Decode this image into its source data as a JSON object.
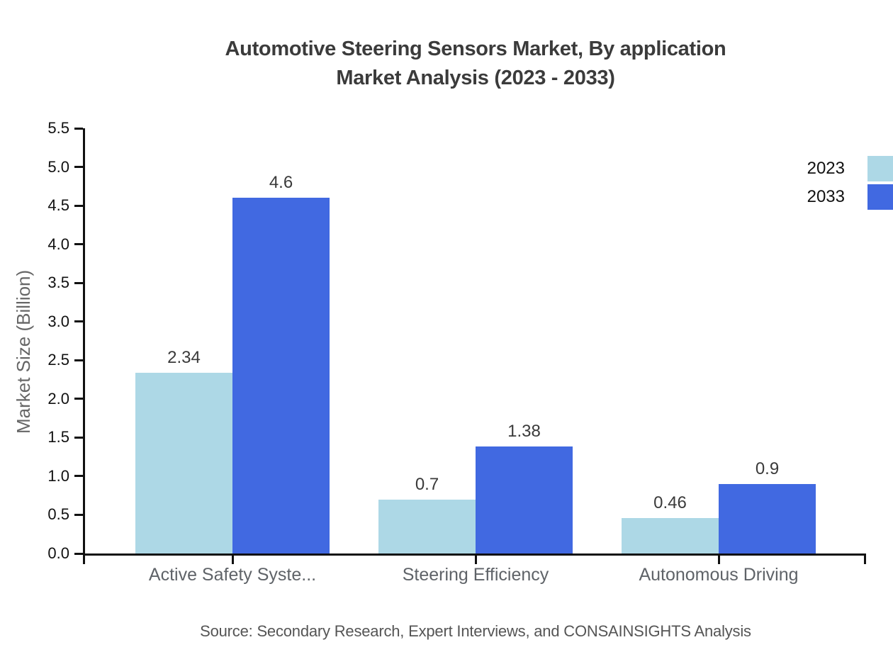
{
  "title": {
    "line1": "Automotive Steering Sensors Market, By application",
    "line2": "Market Analysis (2023 - 2033)"
  },
  "y_axis": {
    "title": "Market Size (Billion)",
    "ticks": [
      "0.0",
      "0.5",
      "1.0",
      "1.5",
      "2.0",
      "2.5",
      "3.0",
      "3.5",
      "4.0",
      "4.5",
      "5.0",
      "5.5"
    ]
  },
  "legend": {
    "items": [
      {
        "label": "2023",
        "color": "#ADD8E6"
      },
      {
        "label": "2033",
        "color": "#4169E1"
      }
    ]
  },
  "source": "Source: Secondary Research, Expert Interviews, and CONSAINSIGHTS Analysis",
  "colors": {
    "axis": "#111111",
    "title_text": "#3b3b3b",
    "category_text": "#5f6368",
    "value_text": "#3a3a3a",
    "tick_text": "#111111",
    "source_text": "#555555",
    "background": "#ffffff"
  },
  "chart_data": {
    "type": "bar",
    "title": "Automotive Steering Sensors Market, By application Market Analysis (2023 - 2033)",
    "categories": [
      "Active Safety Syste...",
      "Steering Efficiency",
      "Autonomous Driving"
    ],
    "series": [
      {
        "name": "2023",
        "color": "#ADD8E6",
        "values": [
          2.34,
          0.7,
          0.46
        ]
      },
      {
        "name": "2033",
        "color": "#4169E1",
        "values": [
          4.6,
          1.38,
          0.9
        ]
      }
    ],
    "xlabel": "",
    "ylabel": "Market Size (Billion)",
    "ylim": [
      0,
      5.5
    ],
    "ytick_step": 0.5,
    "grid": false,
    "legend_position": "top-right",
    "data_labels": true
  }
}
